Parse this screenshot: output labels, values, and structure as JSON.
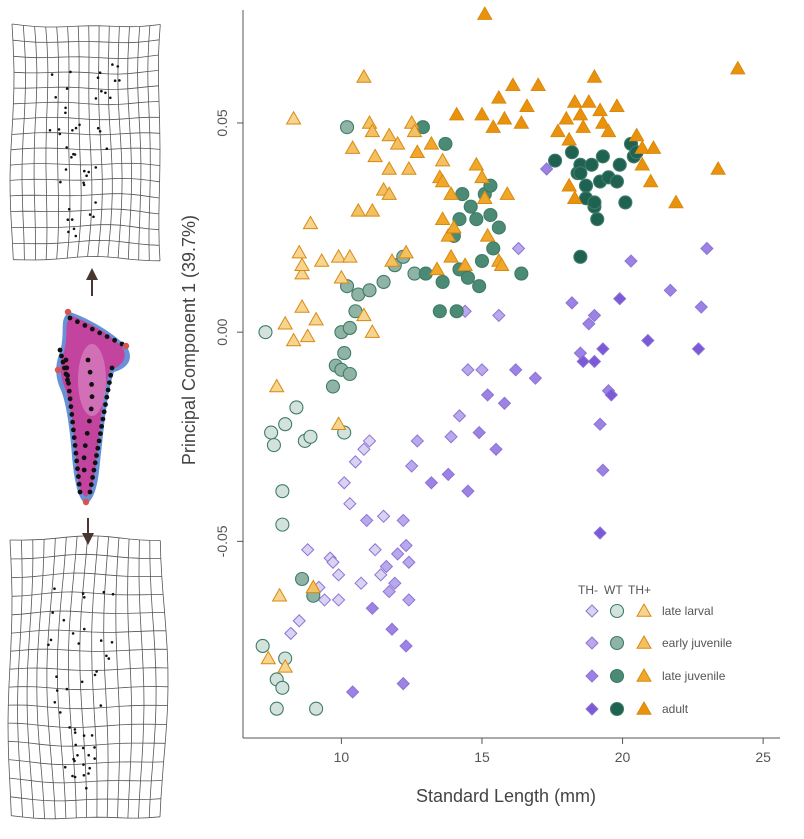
{
  "chart_data": {
    "type": "scatter",
    "title": "",
    "xlabel": "Standard Length (mm)",
    "ylabel": "Principal Component 1 (39.7%)",
    "xlim": [
      6.5,
      25.6
    ],
    "ylim": [
      -0.097,
      0.077
    ],
    "x_ticks": [
      10,
      15,
      20,
      25
    ],
    "x_tick_labels": [
      "10",
      "15",
      "20",
      "25"
    ],
    "y_ticks": [
      0.05,
      0.0,
      -0.05
    ],
    "y_tick_labels": [
      "0.05",
      "0.00",
      "-0.05"
    ],
    "grid": false,
    "legend_position": "bottom-right",
    "legend_header": [
      "TH-",
      "WT",
      "TH+"
    ],
    "legend_rows": [
      "late larval",
      "early juvenile",
      "late juvenile",
      "adult"
    ],
    "colors": {
      "th_minus": [
        "#d9d2f1",
        "#b9a8ec",
        "#9c82e2",
        "#7c59d6"
      ],
      "wt": [
        "#d3e2dc",
        "#8fb3a5",
        "#4b8a75",
        "#1f6252"
      ],
      "th_plus": [
        "#f7d590",
        "#f3c062",
        "#f0a72a",
        "#ea920c"
      ],
      "th_minus_stroke": "#8c73d8",
      "wt_stroke": "#3f7c68",
      "th_plus_stroke": "#d88a10",
      "axis": "#555555",
      "arrow": "#4a3630",
      "grid_lines": "#555555",
      "landmarks": "#111111",
      "bone_fill": "#c2449f",
      "bone_edge": "#4c7fd0",
      "bone_end_landmarks": "#d9534f"
    },
    "series": [
      {
        "name": "TH- late larval",
        "group": "th_minus",
        "stage": 0,
        "marker": "diamond",
        "points": [
          [
            7.7,
            -0.09
          ],
          [
            8.2,
            -0.072
          ],
          [
            8.5,
            -0.069
          ],
          [
            8.8,
            -0.052
          ],
          [
            9.2,
            -0.061
          ],
          [
            9.4,
            -0.064
          ],
          [
            9.6,
            -0.054
          ],
          [
            9.9,
            -0.058
          ],
          [
            9.9,
            -0.064
          ],
          [
            10.1,
            -0.036
          ],
          [
            10.3,
            -0.041
          ],
          [
            10.5,
            -0.031
          ],
          [
            10.8,
            -0.028
          ],
          [
            11.0,
            -0.026
          ],
          [
            11.2,
            -0.052
          ],
          [
            11.5,
            -0.044
          ],
          [
            11.4,
            -0.058
          ],
          [
            9.7,
            -0.055
          ],
          [
            10.7,
            -0.06
          ]
        ]
      },
      {
        "name": "TH- early juvenile",
        "group": "th_minus",
        "stage": 1,
        "marker": "diamond",
        "points": [
          [
            10.9,
            -0.045
          ],
          [
            11.6,
            -0.056
          ],
          [
            11.9,
            -0.06
          ],
          [
            12.2,
            -0.045
          ],
          [
            12.3,
            -0.051
          ],
          [
            12.5,
            -0.032
          ],
          [
            12.7,
            -0.026
          ],
          [
            13.9,
            -0.025
          ],
          [
            14.2,
            -0.02
          ],
          [
            14.4,
            0.005
          ],
          [
            15.6,
            0.004
          ],
          [
            16.3,
            0.02
          ],
          [
            15.0,
            -0.009
          ],
          [
            14.5,
            -0.009
          ],
          [
            11.7,
            -0.062
          ],
          [
            12.0,
            -0.053
          ],
          [
            12.4,
            -0.055
          ],
          [
            12.4,
            -0.064
          ]
        ]
      },
      {
        "name": "TH- late juvenile",
        "group": "th_minus",
        "stage": 2,
        "marker": "diamond",
        "points": [
          [
            11.8,
            -0.071
          ],
          [
            12.3,
            -0.075
          ],
          [
            12.2,
            -0.084
          ],
          [
            13.2,
            -0.036
          ],
          [
            13.8,
            -0.034
          ],
          [
            14.5,
            -0.038
          ],
          [
            14.9,
            -0.024
          ],
          [
            15.2,
            -0.015
          ],
          [
            15.5,
            -0.028
          ],
          [
            15.8,
            -0.017
          ],
          [
            16.2,
            -0.009
          ],
          [
            16.9,
            -0.011
          ],
          [
            18.2,
            0.007
          ],
          [
            18.5,
            -0.005
          ],
          [
            18.8,
            0.002
          ],
          [
            19.0,
            0.004
          ],
          [
            19.2,
            -0.022
          ],
          [
            19.3,
            -0.033
          ],
          [
            19.5,
            -0.014
          ],
          [
            20.3,
            0.017
          ],
          [
            21.7,
            0.01
          ],
          [
            22.8,
            0.006
          ],
          [
            23.0,
            0.02
          ],
          [
            17.3,
            0.039
          ],
          [
            11.1,
            -0.066
          ],
          [
            10.4,
            -0.086
          ]
        ]
      },
      {
        "name": "TH- adult",
        "group": "th_minus",
        "stage": 3,
        "marker": "diamond",
        "points": [
          [
            19.2,
            -0.048
          ],
          [
            19.3,
            -0.004
          ],
          [
            19.6,
            -0.015
          ],
          [
            18.6,
            -0.007
          ],
          [
            19.0,
            -0.007
          ],
          [
            19.9,
            0.008
          ],
          [
            20.9,
            -0.002
          ],
          [
            22.7,
            -0.004
          ]
        ]
      },
      {
        "name": "WT late larval",
        "group": "wt",
        "stage": 0,
        "marker": "circle",
        "points": [
          [
            7.2,
            -0.075
          ],
          [
            7.3,
            0.0
          ],
          [
            7.5,
            -0.024
          ],
          [
            7.6,
            -0.027
          ],
          [
            7.7,
            -0.083
          ],
          [
            7.7,
            -0.09
          ],
          [
            7.9,
            -0.085
          ],
          [
            8.0,
            -0.078
          ],
          [
            7.9,
            -0.038
          ],
          [
            7.9,
            -0.046
          ],
          [
            8.0,
            -0.022
          ],
          [
            8.4,
            -0.018
          ],
          [
            8.7,
            -0.026
          ],
          [
            8.9,
            -0.025
          ],
          [
            9.1,
            -0.09
          ],
          [
            10.1,
            -0.024
          ]
        ]
      },
      {
        "name": "WT early juvenile",
        "group": "wt",
        "stage": 1,
        "marker": "circle",
        "points": [
          [
            9.7,
            -0.013
          ],
          [
            9.8,
            -0.008
          ],
          [
            10.0,
            -0.009
          ],
          [
            10.3,
            -0.01
          ],
          [
            10.0,
            0.0
          ],
          [
            10.1,
            -0.005
          ],
          [
            10.3,
            0.001
          ],
          [
            10.5,
            0.005
          ],
          [
            10.2,
            0.011
          ],
          [
            10.6,
            0.009
          ],
          [
            11.0,
            0.01
          ],
          [
            11.5,
            0.012
          ],
          [
            11.9,
            0.016
          ],
          [
            12.2,
            0.018
          ],
          [
            12.6,
            0.014
          ],
          [
            10.2,
            0.049
          ],
          [
            8.6,
            -0.059
          ],
          [
            9.0,
            -0.063
          ]
        ]
      },
      {
        "name": "WT late juvenile",
        "group": "wt",
        "stage": 2,
        "marker": "circle",
        "points": [
          [
            13.0,
            0.014
          ],
          [
            13.6,
            0.012
          ],
          [
            13.5,
            0.005
          ],
          [
            14.1,
            0.005
          ],
          [
            14.2,
            0.015
          ],
          [
            14.5,
            0.013
          ],
          [
            14.9,
            0.011
          ],
          [
            15.0,
            0.017
          ],
          [
            15.4,
            0.02
          ],
          [
            15.6,
            0.025
          ],
          [
            15.3,
            0.028
          ],
          [
            14.8,
            0.027
          ],
          [
            14.0,
            0.023
          ],
          [
            14.2,
            0.027
          ],
          [
            14.6,
            0.03
          ],
          [
            14.3,
            0.033
          ],
          [
            15.1,
            0.033
          ],
          [
            15.3,
            0.035
          ],
          [
            16.4,
            0.014
          ],
          [
            12.9,
            0.049
          ],
          [
            13.7,
            0.045
          ]
        ]
      },
      {
        "name": "WT adult",
        "group": "wt",
        "stage": 3,
        "marker": "circle",
        "points": [
          [
            17.6,
            0.041
          ],
          [
            18.2,
            0.043
          ],
          [
            18.4,
            0.038
          ],
          [
            18.5,
            0.04
          ],
          [
            18.7,
            0.035
          ],
          [
            18.9,
            0.04
          ],
          [
            19.2,
            0.036
          ],
          [
            19.3,
            0.042
          ],
          [
            19.5,
            0.037
          ],
          [
            19.8,
            0.036
          ],
          [
            19.9,
            0.04
          ],
          [
            20.3,
            0.045
          ],
          [
            20.4,
            0.042
          ],
          [
            20.5,
            0.043
          ],
          [
            18.5,
            0.038
          ],
          [
            18.7,
            0.032
          ],
          [
            19.0,
            0.03
          ],
          [
            19.1,
            0.027
          ],
          [
            19.0,
            0.031
          ],
          [
            20.1,
            0.031
          ],
          [
            18.5,
            0.018
          ]
        ]
      },
      {
        "name": "TH+ late larval",
        "group": "th_plus",
        "stage": 0,
        "marker": "triangle",
        "points": [
          [
            7.4,
            -0.078
          ],
          [
            8.0,
            -0.08
          ],
          [
            7.8,
            -0.063
          ],
          [
            7.7,
            -0.013
          ],
          [
            8.0,
            0.002
          ],
          [
            8.3,
            -0.002
          ],
          [
            8.8,
            -0.001
          ],
          [
            8.6,
            0.006
          ],
          [
            8.6,
            0.014
          ],
          [
            9.1,
            0.003
          ],
          [
            8.5,
            0.019
          ],
          [
            8.6,
            0.016
          ],
          [
            9.3,
            0.017
          ],
          [
            9.9,
            0.018
          ],
          [
            10.3,
            0.018
          ],
          [
            10.0,
            0.013
          ],
          [
            9.9,
            -0.022
          ],
          [
            10.8,
            0.004
          ],
          [
            11.1,
            0.0
          ],
          [
            8.3,
            0.051
          ],
          [
            8.9,
            0.026
          ]
        ]
      },
      {
        "name": "TH+ early juvenile",
        "group": "th_plus",
        "stage": 1,
        "marker": "triangle",
        "points": [
          [
            9.0,
            -0.061
          ],
          [
            10.6,
            0.029
          ],
          [
            10.4,
            0.044
          ],
          [
            10.8,
            0.061
          ],
          [
            11.0,
            0.05
          ],
          [
            11.2,
            0.042
          ],
          [
            11.1,
            0.048
          ],
          [
            11.7,
            0.047
          ],
          [
            11.7,
            0.039
          ],
          [
            12.0,
            0.045
          ],
          [
            11.1,
            0.029
          ],
          [
            11.5,
            0.034
          ],
          [
            11.7,
            0.033
          ],
          [
            12.4,
            0.039
          ],
          [
            12.5,
            0.05
          ],
          [
            12.6,
            0.048
          ],
          [
            13.6,
            0.041
          ],
          [
            12.3,
            0.019
          ],
          [
            11.8,
            0.017
          ]
        ]
      },
      {
        "name": "TH+ late juvenile",
        "group": "th_plus",
        "stage": 2,
        "marker": "triangle",
        "points": [
          [
            12.7,
            0.043
          ],
          [
            13.2,
            0.045
          ],
          [
            13.5,
            0.037
          ],
          [
            13.6,
            0.036
          ],
          [
            13.9,
            0.033
          ],
          [
            13.4,
            0.015
          ],
          [
            13.6,
            0.027
          ],
          [
            13.8,
            0.023
          ],
          [
            13.9,
            0.018
          ],
          [
            14.0,
            0.025
          ],
          [
            14.4,
            0.016
          ],
          [
            14.8,
            0.04
          ],
          [
            15.0,
            0.037
          ],
          [
            15.1,
            0.032
          ],
          [
            15.2,
            0.023
          ],
          [
            15.6,
            0.017
          ],
          [
            15.9,
            0.033
          ],
          [
            15.7,
            0.016
          ]
        ]
      },
      {
        "name": "TH+ adult",
        "group": "th_plus",
        "stage": 3,
        "marker": "triangle",
        "points": [
          [
            14.1,
            0.052
          ],
          [
            15.0,
            0.052
          ],
          [
            15.4,
            0.049
          ],
          [
            15.1,
            0.076
          ],
          [
            15.6,
            0.056
          ],
          [
            15.8,
            0.051
          ],
          [
            16.1,
            0.059
          ],
          [
            16.4,
            0.05
          ],
          [
            16.6,
            0.054
          ],
          [
            17.0,
            0.059
          ],
          [
            17.7,
            0.048
          ],
          [
            18.0,
            0.051
          ],
          [
            18.1,
            0.046
          ],
          [
            18.3,
            0.055
          ],
          [
            18.5,
            0.052
          ],
          [
            18.6,
            0.049
          ],
          [
            18.8,
            0.055
          ],
          [
            19.0,
            0.061
          ],
          [
            19.2,
            0.053
          ],
          [
            19.3,
            0.05
          ],
          [
            19.5,
            0.048
          ],
          [
            19.8,
            0.054
          ],
          [
            20.5,
            0.047
          ],
          [
            20.7,
            0.044
          ],
          [
            21.1,
            0.044
          ],
          [
            20.7,
            0.04
          ],
          [
            21.0,
            0.036
          ],
          [
            18.1,
            0.035
          ],
          [
            18.3,
            0.032
          ],
          [
            21.9,
            0.031
          ],
          [
            23.4,
            0.039
          ],
          [
            24.1,
            0.063
          ]
        ]
      }
    ]
  }
}
